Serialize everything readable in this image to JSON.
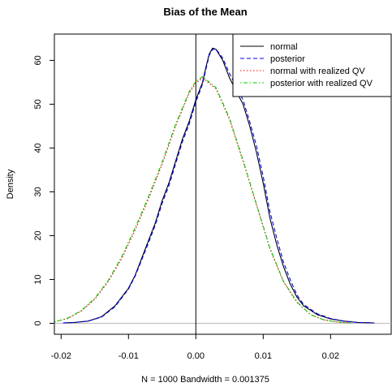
{
  "chart_data": {
    "type": "line",
    "title": "Bias of the Mean",
    "xlabel": "N = 1000   Bandwidth = 0.001375",
    "ylabel": "Density",
    "xlim": [
      -0.021,
      0.029
    ],
    "ylim": [
      -2.5,
      66
    ],
    "xticks": [
      -0.02,
      -0.01,
      0.0,
      0.01,
      0.02
    ],
    "xtick_labels": [
      "-0.02",
      "-0.01",
      "0.00",
      "0.01",
      "0.02"
    ],
    "yticks": [
      0,
      10,
      20,
      30,
      40,
      50,
      60
    ],
    "ytick_labels": [
      "0",
      "10",
      "20",
      "30",
      "40",
      "50",
      "60"
    ],
    "vline_x": 0.0,
    "grid": false,
    "legend_position": "top-right",
    "series": [
      {
        "name": "normal",
        "color": "#000000",
        "dash": "solid",
        "x": [
          -0.0197,
          -0.018,
          -0.016,
          -0.014,
          -0.012,
          -0.01,
          -0.009,
          -0.008,
          -0.007,
          -0.006,
          -0.005,
          -0.004,
          -0.003,
          -0.002,
          -0.001,
          0.0,
          0.001,
          0.0015,
          0.002,
          0.0025,
          0.003,
          0.004,
          0.005,
          0.006,
          0.007,
          0.008,
          0.009,
          0.01,
          0.011,
          0.012,
          0.013,
          0.014,
          0.015,
          0.016,
          0.018,
          0.02,
          0.022,
          0.024,
          0.0265
        ],
        "y": [
          0.1,
          0.2,
          0.5,
          1.5,
          4.0,
          8.0,
          11.0,
          15.0,
          19.0,
          23.0,
          28.0,
          32.0,
          37.0,
          42.0,
          46.0,
          51.0,
          55.0,
          58.5,
          61.5,
          62.8,
          62.5,
          60.0,
          56.0,
          53.0,
          50.0,
          45.0,
          39.0,
          32.0,
          24.0,
          18.0,
          13.0,
          9.0,
          6.0,
          4.0,
          2.0,
          1.0,
          0.5,
          0.2,
          0.1
        ]
      },
      {
        "name": "posterior",
        "color": "#0000ff",
        "dash": "dashed",
        "x": [
          -0.0197,
          -0.018,
          -0.016,
          -0.014,
          -0.012,
          -0.01,
          -0.009,
          -0.008,
          -0.007,
          -0.006,
          -0.005,
          -0.004,
          -0.003,
          -0.002,
          -0.001,
          0.0,
          0.001,
          0.0015,
          0.002,
          0.0025,
          0.003,
          0.004,
          0.005,
          0.006,
          0.007,
          0.008,
          0.009,
          0.01,
          0.011,
          0.012,
          0.013,
          0.014,
          0.015,
          0.016,
          0.018,
          0.02,
          0.022,
          0.024,
          0.0265
        ],
        "y": [
          0.1,
          0.2,
          0.5,
          1.4,
          3.8,
          7.8,
          10.8,
          14.6,
          18.5,
          22.5,
          27.4,
          31.4,
          36.4,
          41.4,
          45.4,
          50.5,
          54.6,
          58.0,
          61.2,
          62.5,
          62.6,
          60.5,
          57.0,
          54.0,
          51.0,
          46.0,
          40.5,
          33.5,
          25.5,
          19.5,
          14.0,
          10.0,
          6.5,
          4.3,
          2.2,
          1.1,
          0.5,
          0.2,
          0.1
        ]
      },
      {
        "name": "normal with realized QV",
        "color": "#ff0000",
        "dash": "dotted",
        "x": [
          -0.021,
          -0.019,
          -0.017,
          -0.015,
          -0.013,
          -0.011,
          -0.009,
          -0.007,
          -0.005,
          -0.003,
          -0.001,
          0.0,
          0.001,
          0.003,
          0.005,
          0.007,
          0.009,
          0.011,
          0.013,
          0.015,
          0.017,
          0.019,
          0.021,
          0.023
        ],
        "y": [
          0.3,
          1.1,
          2.8,
          5.5,
          9.5,
          14.8,
          21.3,
          28.5,
          36.3,
          45.0,
          52.5,
          54.8,
          56.0,
          53.5,
          46.5,
          37.0,
          27.0,
          17.0,
          9.5,
          4.8,
          2.0,
          0.8,
          0.3,
          0.1
        ]
      },
      {
        "name": "posterior with realized QV",
        "color": "#00cc00",
        "dash": "dotdash",
        "x": [
          -0.021,
          -0.019,
          -0.017,
          -0.015,
          -0.013,
          -0.011,
          -0.009,
          -0.007,
          -0.005,
          -0.003,
          -0.001,
          0.0,
          0.001,
          0.003,
          0.005,
          0.007,
          0.009,
          0.011,
          0.013,
          0.015,
          0.017,
          0.019,
          0.021,
          0.023
        ],
        "y": [
          0.3,
          1.2,
          2.9,
          5.7,
          9.8,
          15.2,
          21.8,
          29.0,
          36.8,
          45.4,
          52.8,
          55.2,
          56.3,
          53.8,
          46.8,
          37.3,
          27.2,
          17.2,
          9.6,
          4.9,
          2.0,
          0.8,
          0.3,
          0.1
        ]
      }
    ]
  }
}
